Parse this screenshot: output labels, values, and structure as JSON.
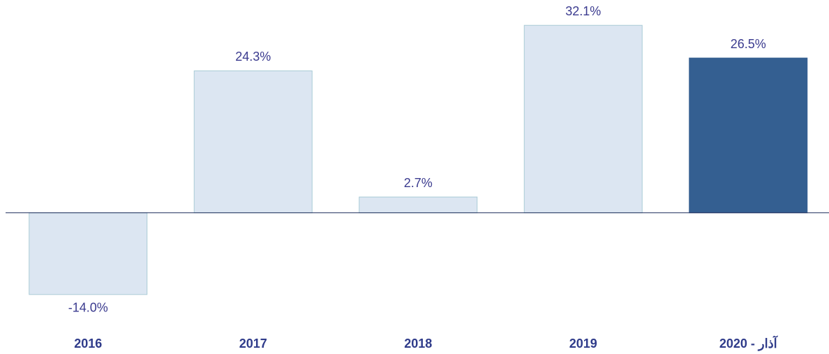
{
  "chart_data": {
    "type": "bar",
    "categories": [
      "2016",
      "2017",
      "2018",
      "2019",
      "2020 - آذار"
    ],
    "values": [
      -14.0,
      24.3,
      2.7,
      32.1,
      26.5
    ],
    "value_labels": [
      "-14.0%",
      "24.3%",
      "2.7%",
      "32.1%",
      "26.5%"
    ],
    "colors": [
      "#dce6f2",
      "#dce6f2",
      "#dce6f2",
      "#dce6f2",
      "#345f91"
    ],
    "ylim": [
      -20,
      35
    ]
  }
}
